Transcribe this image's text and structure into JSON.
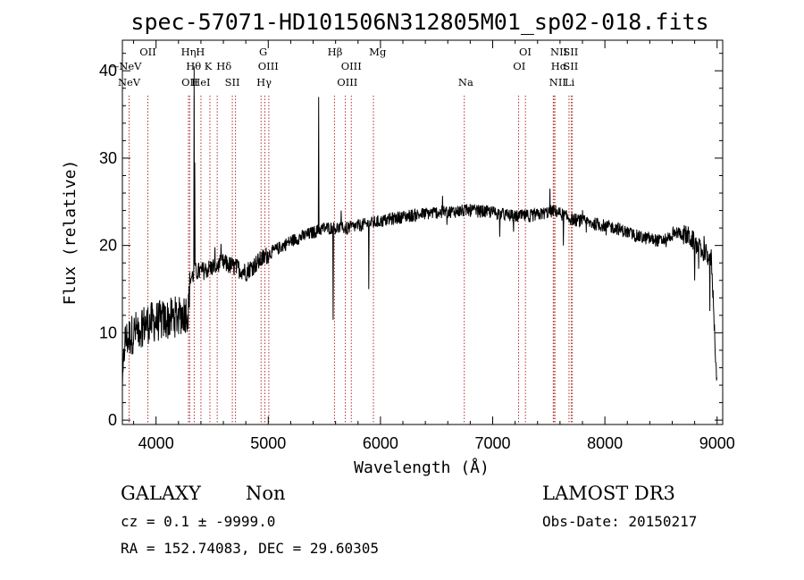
{
  "chart_data": {
    "type": "line",
    "title": "spec-57071-HD101506N312805M01_sp02-018.fits",
    "xlabel": "Wavelength (Å)",
    "ylabel": "Flux (relative)",
    "xlim": [
      3700,
      9050
    ],
    "ylim": [
      -0.5,
      43.5
    ],
    "xticks": [
      4000,
      5000,
      6000,
      7000,
      8000,
      9000
    ],
    "yticks": [
      0,
      10,
      20,
      30,
      40
    ],
    "continuum_knots": [
      [
        3700,
        3
      ],
      [
        3720,
        9
      ],
      [
        3800,
        10
      ],
      [
        3900,
        11
      ],
      [
        4000,
        11.3
      ],
      [
        4100,
        11.5
      ],
      [
        4200,
        12
      ],
      [
        4290,
        12.5
      ],
      [
        4300,
        16
      ],
      [
        4350,
        17
      ],
      [
        4400,
        17
      ],
      [
        4500,
        17.5
      ],
      [
        4600,
        18
      ],
      [
        4700,
        17.5
      ],
      [
        4800,
        17
      ],
      [
        4900,
        18
      ],
      [
        5000,
        19
      ],
      [
        5200,
        20.5
      ],
      [
        5400,
        21.5
      ],
      [
        5500,
        22
      ],
      [
        5700,
        22
      ],
      [
        5900,
        22.5
      ],
      [
        6200,
        23.3
      ],
      [
        6500,
        23.8
      ],
      [
        6800,
        24
      ],
      [
        7000,
        23.8
      ],
      [
        7200,
        23.3
      ],
      [
        7400,
        23.5
      ],
      [
        7550,
        24
      ],
      [
        7700,
        23
      ],
      [
        7900,
        22.5
      ],
      [
        8100,
        22
      ],
      [
        8300,
        21
      ],
      [
        8500,
        20.5
      ],
      [
        8650,
        21.5
      ],
      [
        8750,
        21
      ],
      [
        8850,
        19.5
      ],
      [
        8950,
        18.5
      ],
      [
        9000,
        3.5
      ]
    ],
    "features": [
      {
        "wavelength": 4340,
        "flux": 40.5
      },
      {
        "wavelength": 4344,
        "flux": 29.5
      },
      {
        "wavelength": 5450,
        "flux": 37
      },
      {
        "wavelength": 5578,
        "flux": 11.5
      },
      {
        "wavelength": 5896,
        "flux": 15
      },
      {
        "wavelength": 7510,
        "flux": 26.5
      },
      {
        "wavelength": 7630,
        "flux": 20
      },
      {
        "wavelength": 8800,
        "flux": 16
      },
      {
        "wavelength": 8935,
        "flux": 12.5
      }
    ],
    "lines": [
      {
        "label": "NeV",
        "wavelength": 3725,
        "row": 1,
        "prefix": "—"
      },
      {
        "label": "NeV",
        "wavelength": 3760,
        "row": 2
      },
      {
        "label": "OII",
        "wavelength": 3927,
        "row": 0
      },
      {
        "label": "Hη",
        "wavelength": 4290,
        "row": 0
      },
      {
        "label": "OII",
        "wavelength": 4300,
        "row": 2
      },
      {
        "label": "Hθ",
        "wavelength": 4335,
        "row": 1
      },
      {
        "label": "H",
        "wavelength": 4395,
        "row": 0
      },
      {
        "label": "HeI",
        "wavelength": 4400,
        "row": 2
      },
      {
        "label": "K",
        "wavelength": 4465,
        "row": 1
      },
      {
        "label": "Hδ",
        "wavelength": 4605,
        "row": 1
      },
      {
        "label": "SII",
        "wavelength": 4680,
        "row": 2
      },
      {
        "label": "G",
        "wavelength": 4955,
        "row": 0
      },
      {
        "label": "OIII",
        "wavelength": 5000,
        "row": 1
      },
      {
        "label": "Hγ",
        "wavelength": 4962,
        "row": 2
      },
      {
        "label": "Hβ",
        "wavelength": 5595,
        "row": 0
      },
      {
        "label": "OIII",
        "wavelength": 5740,
        "row": 1
      },
      {
        "label": "OIII",
        "wavelength": 5705,
        "row": 2
      },
      {
        "label": "Mg",
        "wavelength": 5975,
        "row": 0
      },
      {
        "label": "Na",
        "wavelength": 6760,
        "row": 2
      },
      {
        "label": "OI",
        "wavelength": 7290,
        "row": 0
      },
      {
        "label": "OI",
        "wavelength": 7237,
        "row": 1
      },
      {
        "label": "NII",
        "wavelength": 7590,
        "row": 0
      },
      {
        "label": "Hα",
        "wavelength": 7590,
        "row": 1
      },
      {
        "label": "NII",
        "wavelength": 7580,
        "row": 2
      },
      {
        "label": "SII",
        "wavelength": 7695,
        "row": 0
      },
      {
        "label": "SII",
        "wavelength": 7695,
        "row": 1
      },
      {
        "label": "Li",
        "wavelength": 7685,
        "row": 2
      }
    ],
    "marker_lines": [
      3760,
      3927,
      4289,
      4300,
      4340,
      4400,
      4480,
      4545,
      4680,
      4708,
      4936,
      4970,
      5005,
      5590,
      5687,
      5740,
      5937,
      6747,
      7231,
      7292,
      7540,
      7545,
      7555,
      7680,
      7700,
      7710
    ]
  },
  "info": {
    "object_type": "GALAXY",
    "subclass": "Non",
    "survey": "LAMOST DR3",
    "redshift": "cz = 0.1 ± -9999.0",
    "obs_date": "Obs-Date: 20150217",
    "coords": "RA = 152.74083, DEC =  29.60305"
  },
  "colors": {
    "spectrum": "#000000",
    "marker_line": "#b03030",
    "frame": "#000000"
  }
}
